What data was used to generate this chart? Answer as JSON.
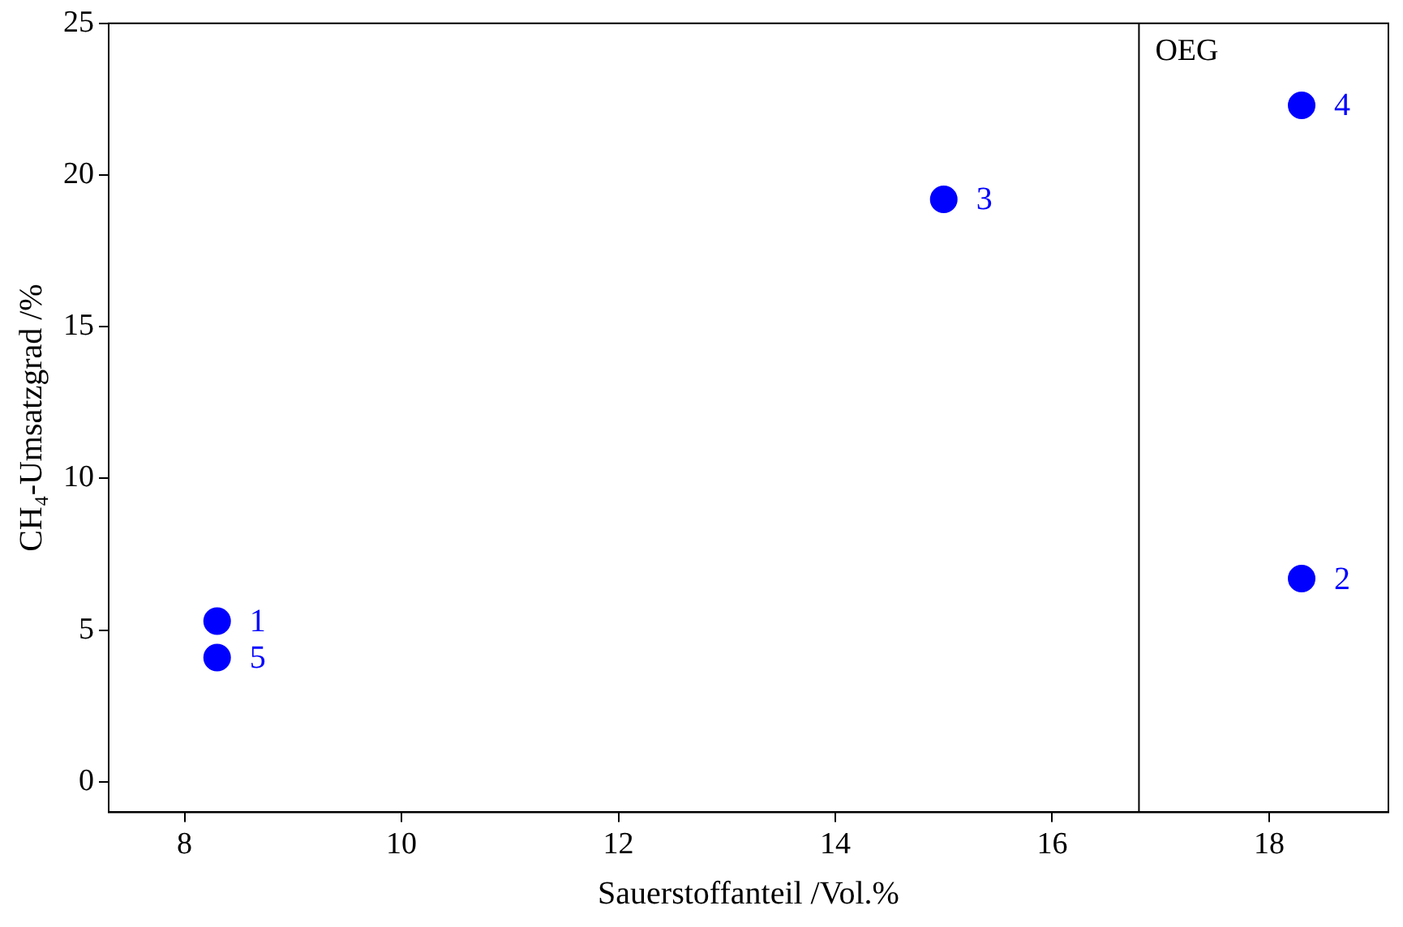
{
  "chart_data": {
    "type": "scatter",
    "xlabel": "Sauerstoffanteil /Vol.%",
    "ylabel": "CH₄-Umsatzgrad /%",
    "series": [
      {
        "color": "#0000ff",
        "x": [
          8.3,
          18.3,
          15.0,
          18.3,
          8.3
        ],
        "values": [
          5.3,
          6.7,
          19.2,
          22.3,
          4.1
        ]
      }
    ],
    "annotations": [
      {
        "text": "1",
        "x": 8.3,
        "y": 5.3
      },
      {
        "text": "2",
        "x": 18.3,
        "y": 6.7
      },
      {
        "text": "3",
        "x": 15.0,
        "y": 19.2
      },
      {
        "text": "4",
        "x": 18.3,
        "y": 22.3
      },
      {
        "text": "5",
        "x": 8.3,
        "y": 4.1
      }
    ],
    "xlim": [
      7.3,
      19.1
    ],
    "ylim": [
      -1,
      25
    ],
    "xticks": [
      8,
      10,
      12,
      14,
      16,
      18
    ],
    "yticks": [
      0,
      5,
      10,
      15,
      20,
      25
    ],
    "ref_lines": [
      {
        "axis": "x",
        "value": 16.8,
        "label": "OEG",
        "color": "#000000"
      }
    ],
    "grid": false,
    "legend": false,
    "marker": "circle"
  }
}
